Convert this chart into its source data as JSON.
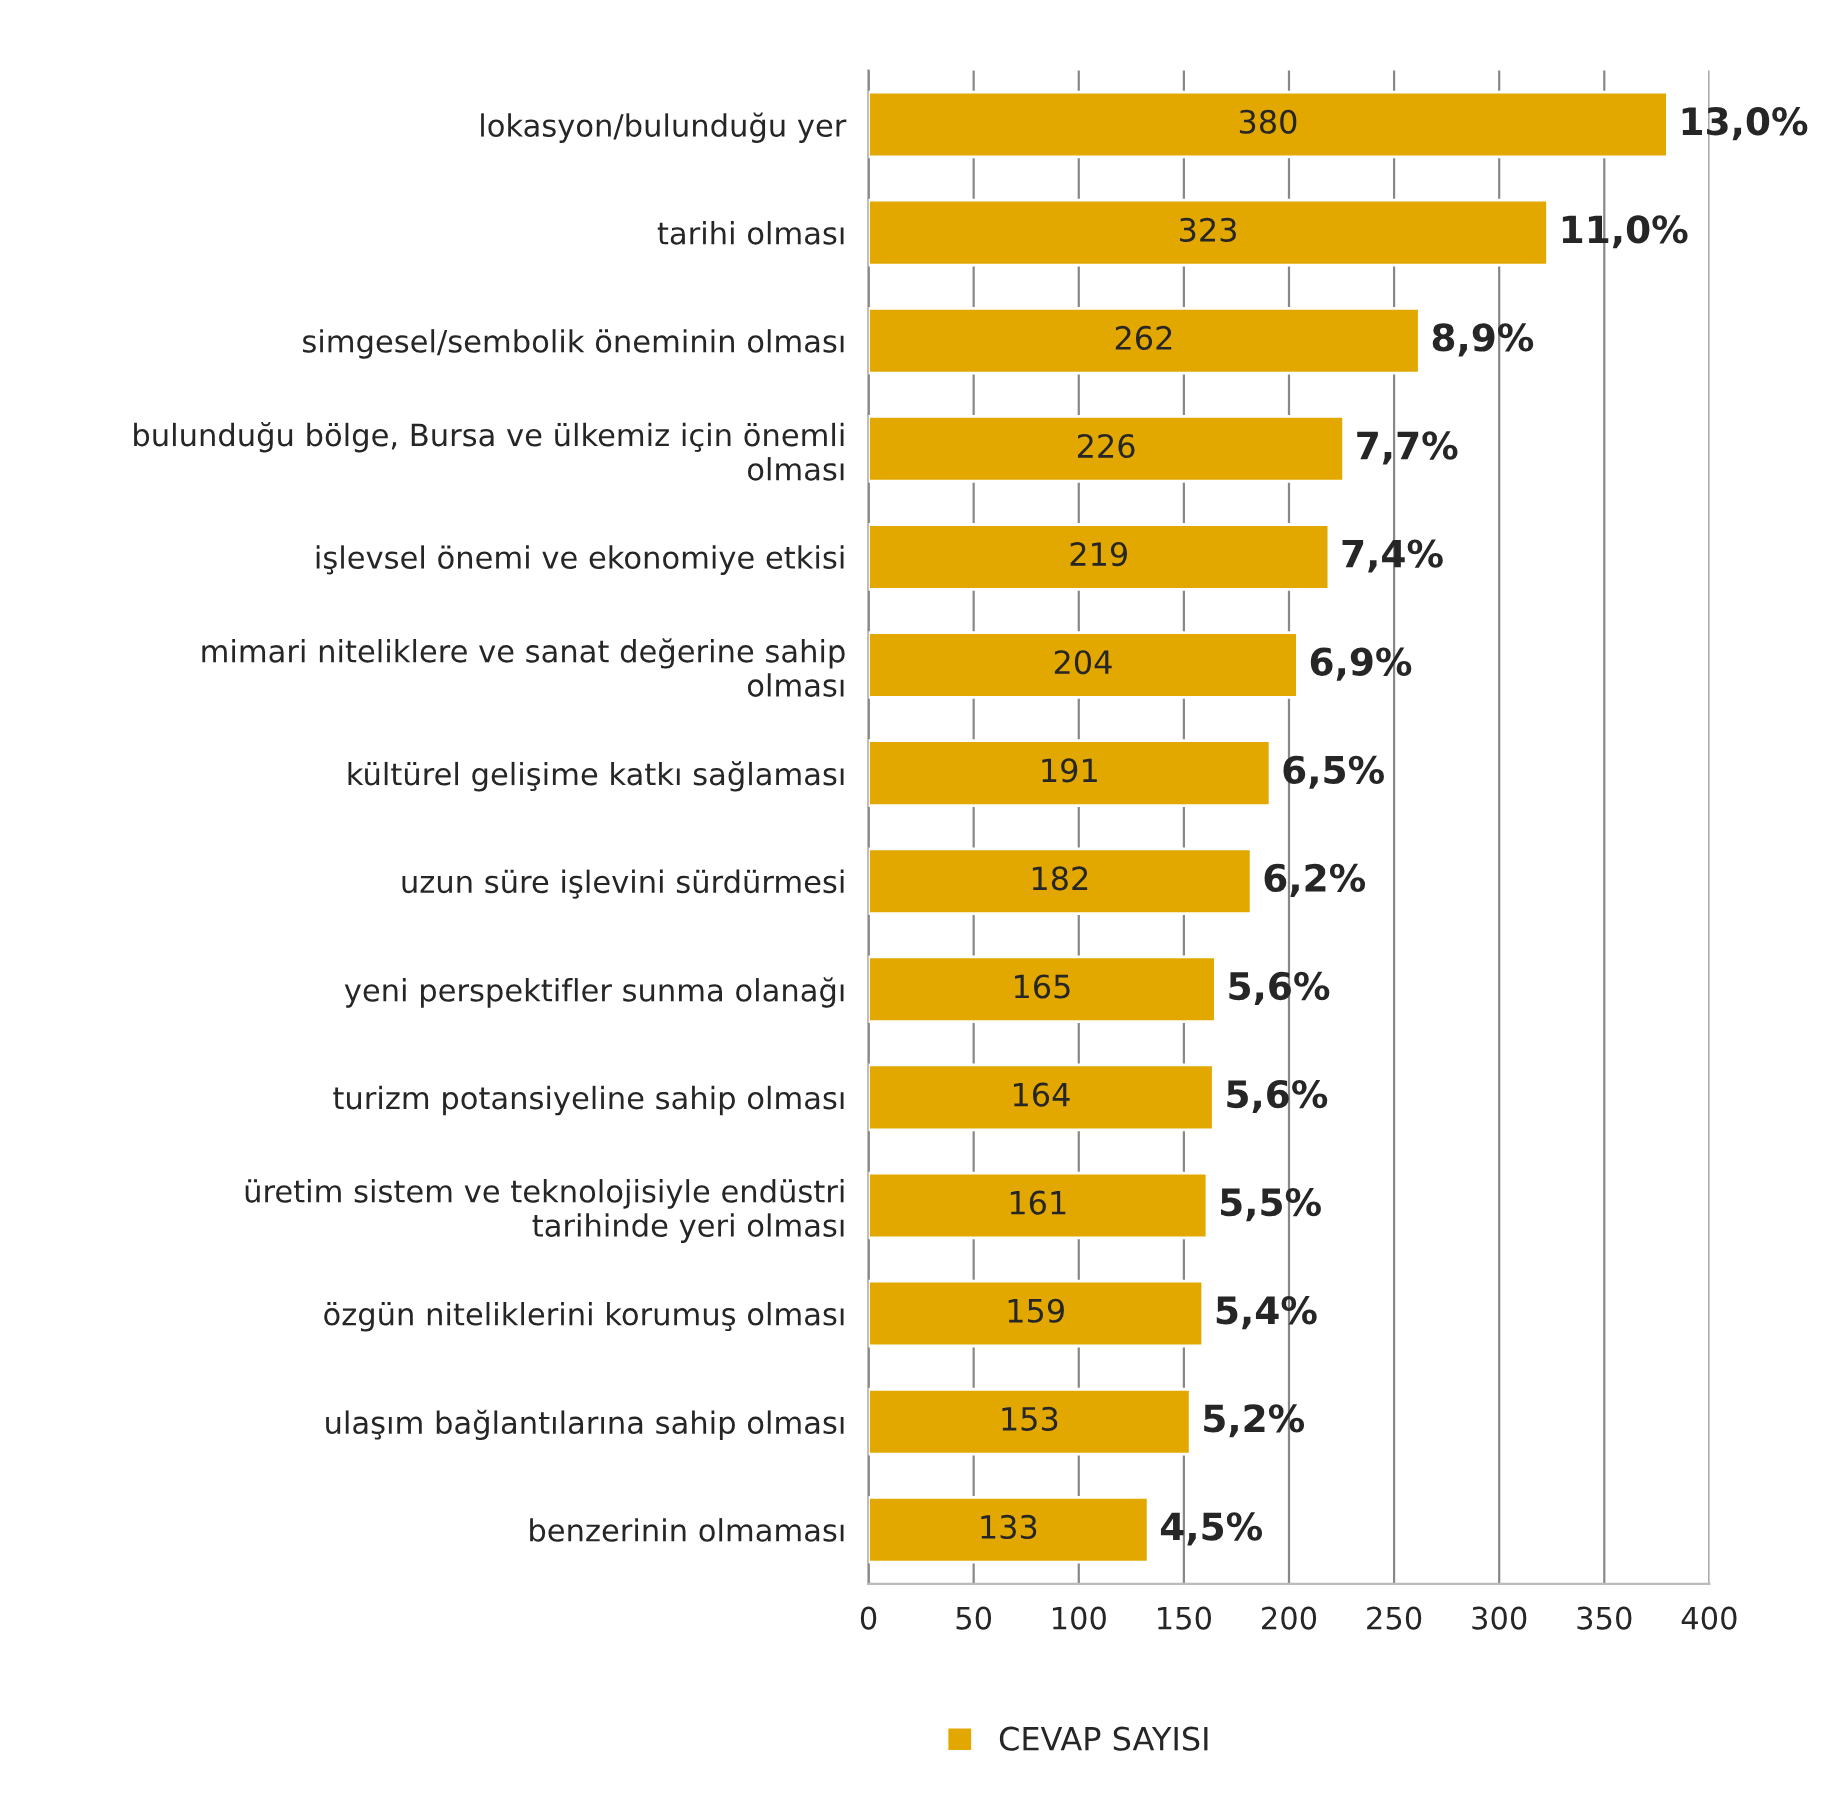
{
  "chart_data": {
    "type": "bar",
    "orientation": "horizontal",
    "categories": [
      "lokasyon/bulunduğu yer",
      "tarihi olması",
      "simgesel/sembolik öneminin olması",
      "bulunduğu bölge, Bursa ve ülkemiz için önemli\nolması",
      "işlevsel önemi ve ekonomiye etkisi",
      "mimari niteliklere ve sanat değerine sahip\nolması",
      "kültürel gelişime katkı sağlaması",
      "uzun süre işlevini sürdürmesi",
      "yeni perspektifler sunma olanağı",
      "turizm potansiyeline sahip olması",
      "üretim sistem ve teknolojisiyle endüstri\ntarihinde yeri olması",
      "özgün niteliklerini korumuş olması",
      "ulaşım bağlantılarına sahip olması",
      "benzerinin olmaması"
    ],
    "series": [
      {
        "name": "CEVAP SAYISI",
        "color": "#e3a800",
        "values": [
          380,
          323,
          262,
          226,
          219,
          204,
          191,
          182,
          165,
          164,
          161,
          159,
          153,
          133
        ]
      }
    ],
    "xlim": [
      0,
      400
    ],
    "xticks": [
      0,
      50,
      100,
      150,
      200,
      250,
      300,
      350,
      400
    ],
    "grid": "x",
    "legend": "bottom",
    "data_labels": true,
    "annotations": [
      {
        "text": "13,0%",
        "x": 380,
        "y": "lokasyon/bulunduğu yer"
      },
      {
        "text": "11,0%",
        "x": 323,
        "y": "tarihi olması"
      },
      {
        "text": "8,9%",
        "x": 262,
        "y": "simgesel/sembolik öneminin olması"
      },
      {
        "text": "7,7%",
        "x": 226,
        "y": "bulunduğu bölge, Bursa ve ülkemiz için önemli\nolması"
      },
      {
        "text": "7,4%",
        "x": 219,
        "y": "işlevsel önemi ve ekonomiye etkisi"
      },
      {
        "text": "6,9%",
        "x": 204,
        "y": "mimari niteliklere ve sanat değerine sahip\nolması"
      },
      {
        "text": "6,5%",
        "x": 191,
        "y": "kültürel gelişime katkı sağlaması"
      },
      {
        "text": "6,2%",
        "x": 182,
        "y": "uzun süre işlevini sürdürmesi"
      },
      {
        "text": "5,6%",
        "x": 165,
        "y": "yeni perspektifler sunma olanağı"
      },
      {
        "text": "5,6%",
        "x": 164,
        "y": "turizm potansiyeline sahip olması"
      },
      {
        "text": "5,5%",
        "x": 161,
        "y": "üretim sistem ve teknolojisiyle endüstri\ntarihinde yeri olması"
      },
      {
        "text": "5,4%",
        "x": 159,
        "y": "özgün niteliklerini korumuş olması"
      },
      {
        "text": "5,2%",
        "x": 153,
        "y": "ulaşım bağlantılarına sahip olması"
      },
      {
        "text": "4,5%",
        "x": 133,
        "y": "benzerinin olmaması"
      }
    ]
  }
}
